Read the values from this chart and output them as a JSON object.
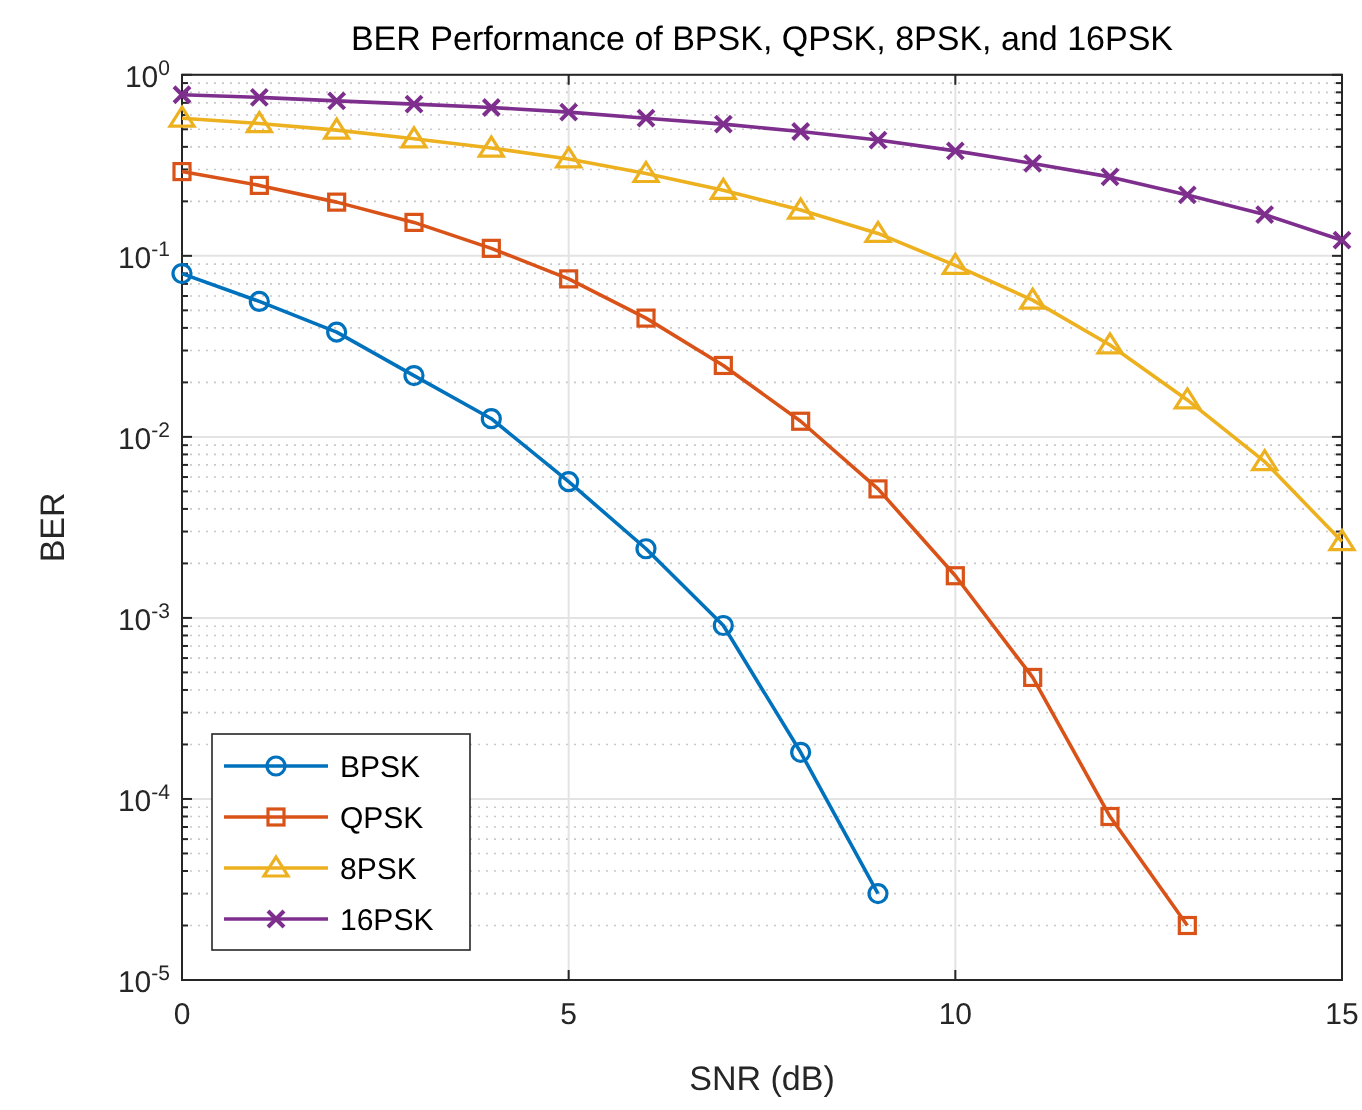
{
  "chart_data": {
    "type": "line",
    "title": "BER Performance of BPSK, QPSK, 8PSK, and 16PSK",
    "xlabel": "SNR (dB)",
    "ylabel": "BER",
    "log": "y",
    "grid": true,
    "legend": "bottom left",
    "xlim": [
      0,
      15
    ],
    "xticks": [
      0,
      5,
      10,
      15
    ],
    "ylim": [
      1e-05,
      1
    ],
    "yticks": [
      {
        "value": 1e-05,
        "label": "10$^{-5}$"
      },
      {
        "value": 0.0001,
        "label": "10$^{-4}$"
      },
      {
        "value": 0.001,
        "label": "10$^{-3}$"
      },
      {
        "value": 0.01,
        "label": "10$^{-2}$"
      },
      {
        "value": 0.1,
        "label": "10$^{-1}$"
      },
      {
        "value": 1,
        "label": "10$^{0}$"
      }
    ],
    "series": [
      {
        "name": "BPSK",
        "color": "#0072bd",
        "marker": "circle",
        "x": [
          0,
          1,
          2,
          3,
          4,
          5,
          6,
          7,
          8,
          9
        ],
        "values": [
          0.0798,
          0.056,
          0.0379,
          0.0218,
          0.0126,
          0.00566,
          0.00241,
          0.000908,
          0.000181,
          3e-05
        ]
      },
      {
        "name": "QPSK",
        "color": "#d95319",
        "marker": "square",
        "x": [
          0,
          1,
          2,
          3,
          4,
          5,
          6,
          7,
          8,
          9,
          10,
          11,
          12,
          13
        ],
        "values": [
          0.292,
          0.245,
          0.198,
          0.153,
          0.11,
          0.0746,
          0.0453,
          0.0248,
          0.0122,
          0.00516,
          0.00171,
          0.000469,
          8e-05,
          2e-05
        ]
      },
      {
        "name": "8PSK",
        "color": "#edb120",
        "marker": "triangle",
        "x": [
          0,
          1,
          2,
          3,
          4,
          5,
          6,
          7,
          8,
          9,
          10,
          11,
          12,
          13,
          14,
          15
        ],
        "values": [
          0.576,
          0.538,
          0.495,
          0.443,
          0.394,
          0.343,
          0.285,
          0.23,
          0.179,
          0.133,
          0.0885,
          0.0569,
          0.0322,
          0.016,
          0.0073,
          0.00264
        ]
      },
      {
        "name": "16PSK",
        "color": "#7e2f8e",
        "marker": "cross",
        "x": [
          0,
          1,
          2,
          3,
          4,
          5,
          6,
          7,
          8,
          9,
          10,
          11,
          12,
          13,
          14,
          15
        ],
        "values": [
          0.776,
          0.75,
          0.718,
          0.689,
          0.66,
          0.622,
          0.576,
          0.534,
          0.486,
          0.436,
          0.38,
          0.324,
          0.273,
          0.217,
          0.169,
          0.122
        ]
      }
    ]
  }
}
